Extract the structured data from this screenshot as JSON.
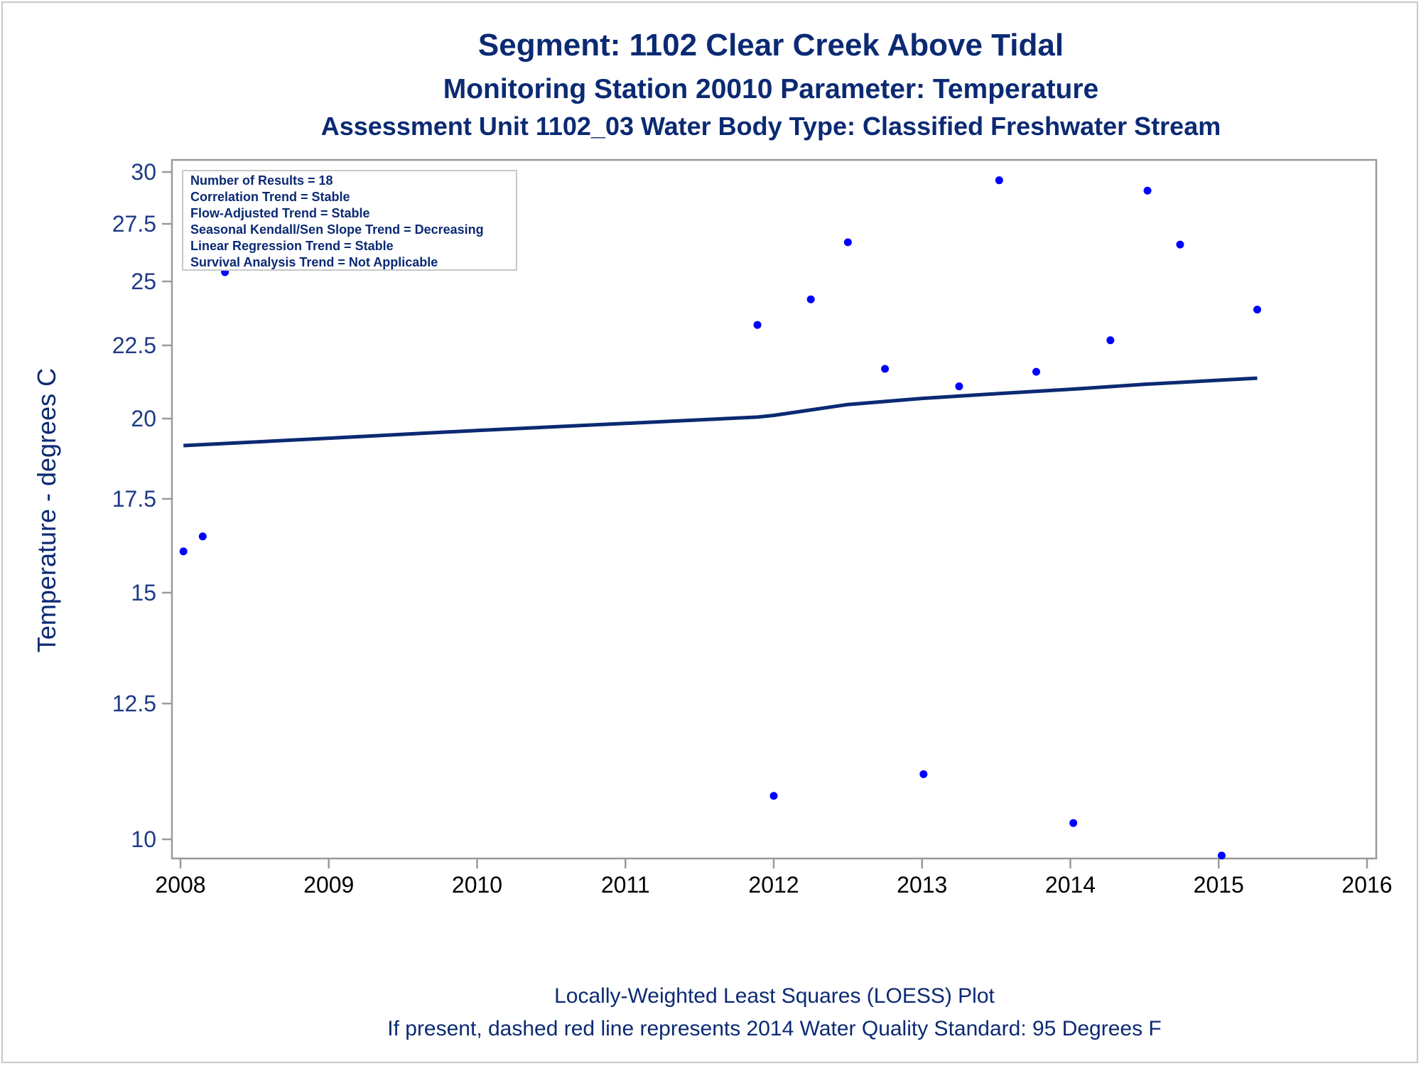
{
  "titles": {
    "line1": "Segment: 1102  Clear Creek Above Tidal",
    "line2": "Monitoring Station 20010 Parameter: Temperature",
    "line3": "Assessment Unit 1102_03   Water Body Type: Classified Freshwater Stream"
  },
  "inset": [
    "Number of Results = 18",
    "Correlation Trend = Stable",
    "Flow-Adjusted Trend = Stable",
    "Seasonal Kendall/Sen Slope Trend = Decreasing",
    "Linear Regression Trend = Stable",
    "Survival Analysis Trend = Not Applicable"
  ],
  "footnotes": {
    "line1": "Locally-Weighted Least Squares (LOESS) Plot",
    "line2": "If present, dashed red line represents 2014 Water Quality Standard: 95   Degrees F"
  },
  "colors": {
    "points": "#0000ff",
    "loess": "#0b2a73",
    "text": "#0b2a73",
    "axis": "#9a9a9a"
  },
  "chart_data": {
    "type": "scatter",
    "ylabel": "Temperature - degrees C",
    "xlabel": "",
    "xlim": [
      2008,
      2016
    ],
    "ylim": [
      9.6,
      30.3
    ],
    "y_scale": "nonlinear (as drawn)",
    "x_ticks": [
      "2008",
      "2009",
      "2010",
      "2011",
      "2012",
      "2013",
      "2014",
      "2015",
      "2016"
    ],
    "y_ticks": [
      "10",
      "12.5",
      "15",
      "17.5",
      "20",
      "22.5",
      "25",
      "27.5",
      "30"
    ],
    "grid": false,
    "series": [
      {
        "kind": "points",
        "x": [
          2008.02,
          2008.15,
          2008.3,
          2011.89,
          2012.0,
          2012.25,
          2012.5,
          2012.75,
          2013.01,
          2013.25,
          2013.52,
          2013.77,
          2014.02,
          2014.27,
          2014.52,
          2014.74,
          2015.02,
          2015.26
        ],
        "y": [
          16.1,
          16.5,
          25.4,
          23.3,
          10.8,
          24.3,
          26.7,
          21.7,
          11.2,
          21.1,
          29.6,
          21.6,
          10.3,
          22.7,
          29.1,
          26.6,
          9.7,
          23.9
        ]
      },
      {
        "kind": "loess",
        "x": [
          2008.02,
          2009.0,
          2010.0,
          2011.0,
          2011.89,
          2012.0,
          2012.5,
          2013.0,
          2013.5,
          2014.0,
          2014.5,
          2015.0,
          2015.26
        ],
        "y": [
          19.16,
          19.39,
          19.63,
          19.85,
          20.05,
          20.11,
          20.48,
          20.69,
          20.85,
          21.0,
          21.17,
          21.31,
          21.38
        ]
      }
    ]
  }
}
